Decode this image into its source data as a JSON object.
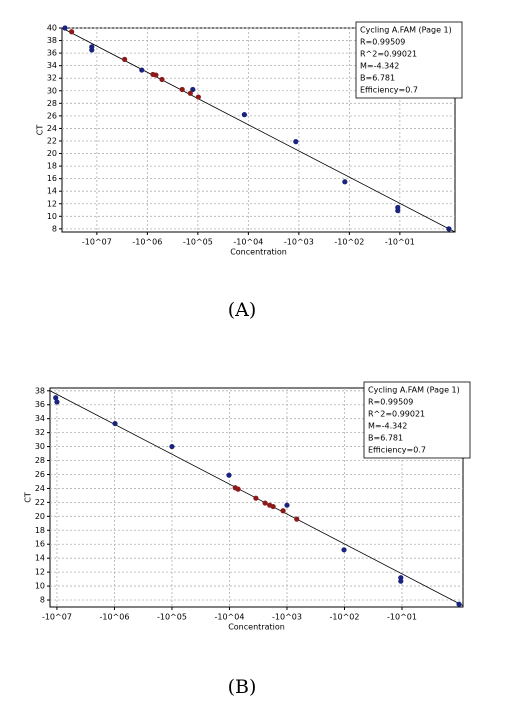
{
  "chart_data": [
    {
      "type": "scatter",
      "caption": "(A)",
      "x_label": "Concentration",
      "y_label": "CT",
      "xscale": "log-negative",
      "grid": true,
      "legend_corner": "top-right",
      "legend_lines": [
        "Cycling A.FAM (Page 1)",
        "R=0.99509",
        "R^2=0.99021",
        "M=-4.342",
        "B=6.781",
        "Efficiency=0.7"
      ],
      "xlim": [
        -49000000,
        -0.81
      ],
      "ylim": [
        7.5,
        40
      ],
      "xticks": [
        {
          "value": -10000000,
          "label": "-10^07"
        },
        {
          "value": -1000000,
          "label": "-10^06"
        },
        {
          "value": -100000,
          "label": "-10^05"
        },
        {
          "value": -10000,
          "label": "-10^04"
        },
        {
          "value": -1000,
          "label": "-10^03"
        },
        {
          "value": -100,
          "label": "-10^02"
        },
        {
          "value": -10,
          "label": "-10^01"
        }
      ],
      "yticks": [
        8,
        10,
        12,
        14,
        16,
        18,
        20,
        22,
        24,
        26,
        28,
        30,
        32,
        34,
        36,
        38,
        40
      ],
      "x": [
        -42700000,
        -31600000,
        -12600000,
        -12600000,
        -2820000,
        -1290000,
        -776000,
        -676000,
        -513000,
        -204000,
        -126000,
        -141000,
        -97700,
        -12000,
        -1150,
        -123,
        -11,
        -11,
        -1.07
      ],
      "values": [
        40,
        39.4,
        37,
        36.5,
        35,
        33.3,
        32.6,
        32.5,
        31.8,
        30.2,
        30.2,
        29.6,
        29,
        26.2,
        21.9,
        15.5,
        11.4,
        10.9,
        8
      ],
      "colors": [
        "#1a237e",
        "#8b1a1a",
        "#1a237e",
        "#1a237e",
        "#8b1a1a",
        "#1a237e",
        "#8b1a1a",
        "#8b1a1a",
        "#8b1a1a",
        "#8b1a1a",
        "#1a237e",
        "#8b1a1a",
        "#8b1a1a",
        "#1a237e",
        "#1a237e",
        "#1a237e",
        "#1a237e",
        "#1a237e",
        "#1a237e"
      ],
      "fit_line": {
        "x": [
          -49000000,
          -0.81
        ],
        "y": [
          40,
          7.5
        ]
      }
    },
    {
      "type": "scatter",
      "caption": "(B)",
      "x_label": "Concentration",
      "y_label": "CT",
      "xscale": "log-negative",
      "grid": true,
      "legend_corner": "top-right",
      "legend_lines": [
        "Cycling A.FAM (Page 1)",
        "R=0.99509",
        "R^2=0.99021",
        "M=-4.342",
        "B=6.781",
        "Efficiency=0.7"
      ],
      "xlim": [
        -13200000,
        -0.87
      ],
      "ylim": [
        7,
        38.4
      ],
      "xticks": [
        {
          "value": -10000000,
          "label": "-10^07"
        },
        {
          "value": -1000000,
          "label": "-10^06"
        },
        {
          "value": -100000,
          "label": "-10^05"
        },
        {
          "value": -10000,
          "label": "-10^04"
        },
        {
          "value": -1000,
          "label": "-10^03"
        },
        {
          "value": -100,
          "label": "-10^02"
        },
        {
          "value": -10,
          "label": "-10^01"
        }
      ],
      "yticks": [
        8,
        10,
        12,
        14,
        16,
        18,
        20,
        22,
        24,
        26,
        28,
        30,
        32,
        34,
        36,
        38
      ],
      "x": [
        -10500000,
        -10000000,
        -977000,
        -100000,
        -10200,
        -7940,
        -7080,
        -3470,
        -2400,
        -2000,
        -1740,
        -1170,
        -1000,
        -676,
        -102,
        -10.5,
        -10.5,
        -1.02
      ],
      "values": [
        37,
        36.4,
        33.3,
        30,
        25.9,
        24.1,
        23.9,
        22.6,
        21.9,
        21.6,
        21.4,
        20.8,
        21.6,
        19.6,
        15.2,
        11.2,
        10.7,
        7.4
      ],
      "colors": [
        "#1a237e",
        "#1a237e",
        "#1a237e",
        "#1a237e",
        "#1a237e",
        "#8b1a1a",
        "#8b1a1a",
        "#8b1a1a",
        "#8b1a1a",
        "#8b1a1a",
        "#8b1a1a",
        "#8b1a1a",
        "#1a237e",
        "#8b1a1a",
        "#1a237e",
        "#1a237e",
        "#1a237e",
        "#1a237e"
      ],
      "fit_line": {
        "x": [
          -13200000,
          -0.87
        ],
        "y": [
          38,
          7.2
        ]
      }
    }
  ]
}
